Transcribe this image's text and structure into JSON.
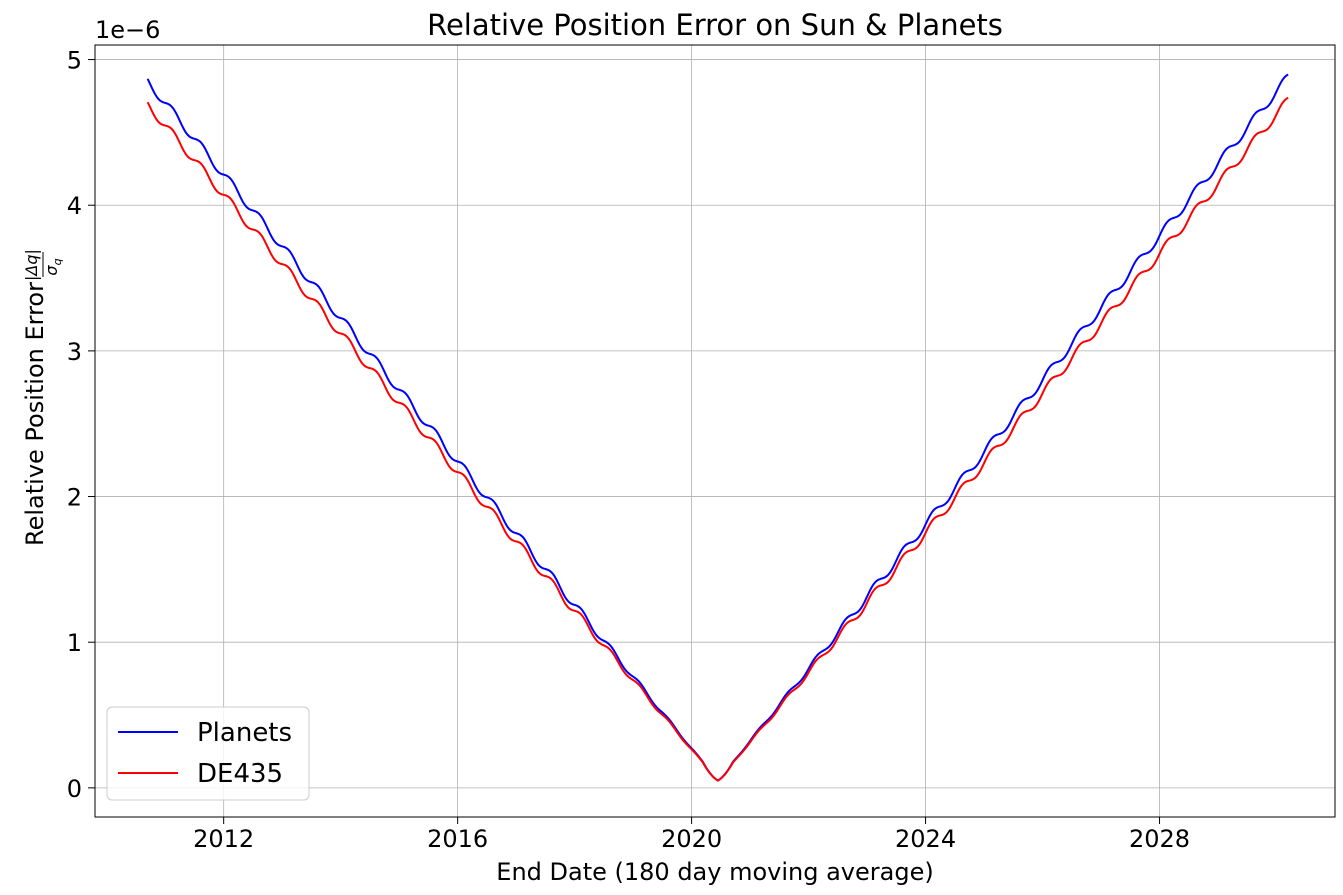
{
  "chart_data": {
    "type": "line",
    "title": "Relative Position Error on Sun & Planets",
    "xlabel": "End Date (180 day moving average)",
    "ylabel_text": "Relative Position Error",
    "ylabel_fraction": {
      "numerator": "|Δq|",
      "denominator": "σ",
      "denominator_sub": "q"
    },
    "y_offset_label": "1e−6",
    "xlim": [
      2009.8,
      2031.0
    ],
    "ylim": [
      -0.2,
      5.1
    ],
    "x_ticks": [
      2012,
      2016,
      2020,
      2024,
      2028
    ],
    "y_ticks": [
      0,
      1,
      2,
      3,
      4,
      5
    ],
    "grid": true,
    "legend_position": "lower-left",
    "series": [
      {
        "name": "Planets",
        "color": "#0000ff",
        "x_start": 2010.7,
        "x_end": 2030.2,
        "x_min": 2020.45,
        "y_start": 4.85,
        "y_end": 4.88,
        "y_min": 0.05,
        "ripple_period_years": 0.5,
        "ripple_amplitude": 0.03
      },
      {
        "name": "DE435",
        "color": "#ff0000",
        "x_start": 2010.7,
        "x_end": 2030.2,
        "x_min": 2020.45,
        "y_start": 4.69,
        "y_end": 4.72,
        "y_min": 0.05,
        "ripple_period_years": 0.5,
        "ripple_amplitude": 0.03
      }
    ]
  }
}
